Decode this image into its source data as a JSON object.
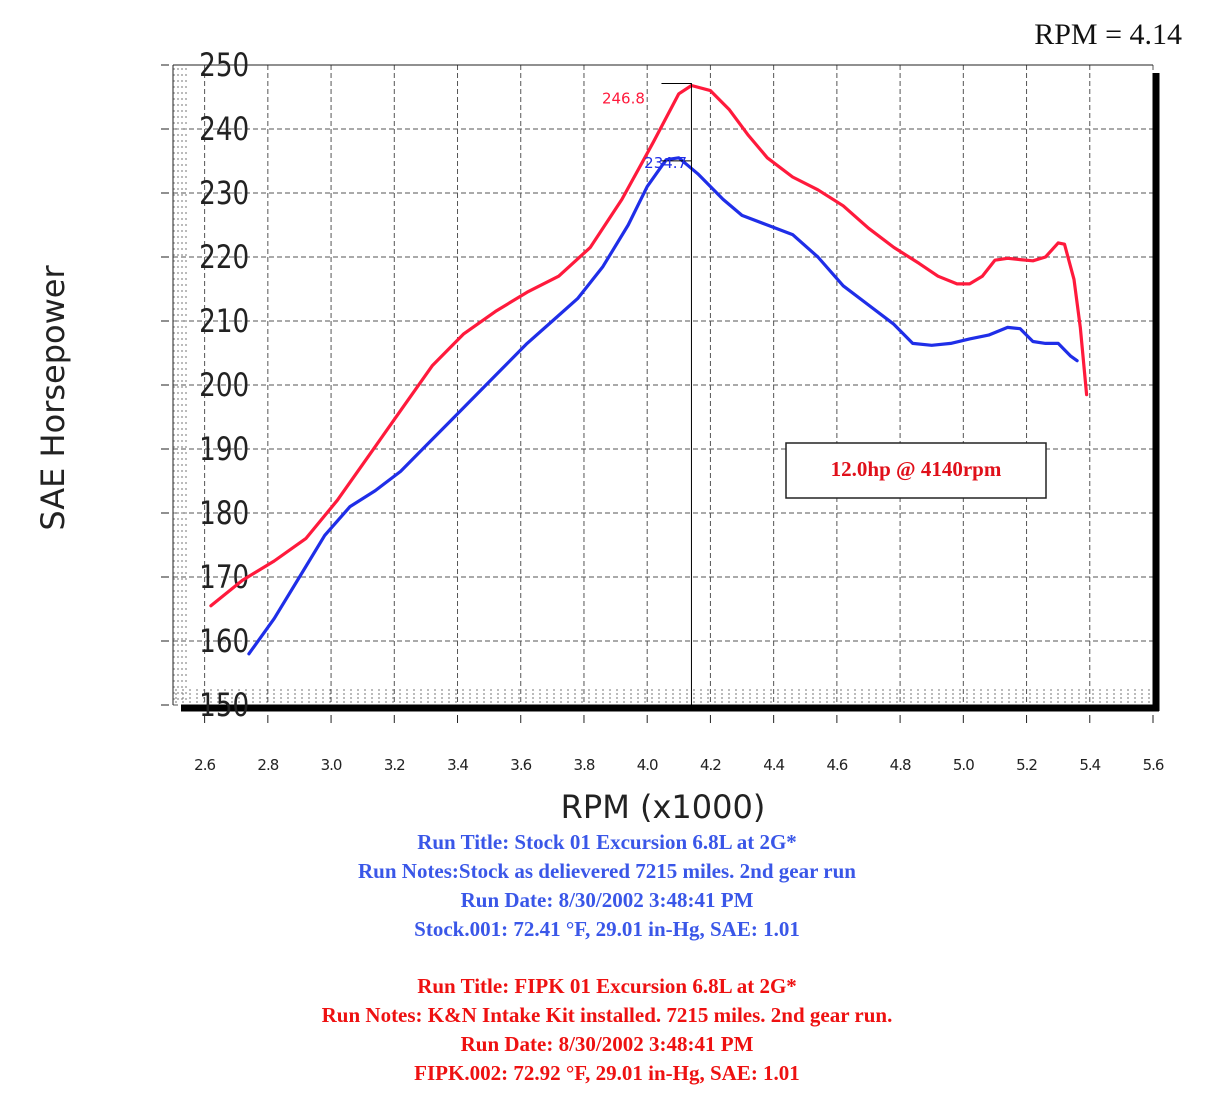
{
  "chart_data": {
    "type": "line",
    "title": "",
    "xlabel": "RPM (x1000)",
    "ylabel": "SAE Horsepower",
    "xlim": [
      2.5,
      5.6
    ],
    "ylim": [
      150,
      250
    ],
    "x_ticks": [
      "2.6",
      "2.8",
      "3.0",
      "3.2",
      "3.4",
      "3.6",
      "3.8",
      "4.0",
      "4.2",
      "4.4",
      "4.6",
      "4.8",
      "5.0",
      "5.2",
      "5.4",
      "5.6"
    ],
    "y_ticks": [
      "150",
      "160",
      "170",
      "180",
      "190",
      "200",
      "210",
      "220",
      "230",
      "240",
      "250"
    ],
    "grid": true,
    "cursor_readout": "RPM = 4.14",
    "cursor_x": 4.14,
    "annotation": "12.0hp @ 4140rpm",
    "series": [
      {
        "color": "#ff1a3c",
        "peak_label": "246.8",
        "peak_x": 4.14,
        "peak_y": 246.8,
        "points": [
          [
            2.62,
            165.5
          ],
          [
            2.72,
            169.5
          ],
          [
            2.82,
            172.5
          ],
          [
            2.92,
            176
          ],
          [
            3.02,
            182
          ],
          [
            3.12,
            189
          ],
          [
            3.22,
            196
          ],
          [
            3.32,
            203
          ],
          [
            3.42,
            208
          ],
          [
            3.52,
            211.5
          ],
          [
            3.62,
            214.5
          ],
          [
            3.72,
            217
          ],
          [
            3.82,
            221.5
          ],
          [
            3.92,
            229
          ],
          [
            4.02,
            238
          ],
          [
            4.1,
            245.5
          ],
          [
            4.14,
            246.8
          ],
          [
            4.2,
            246
          ],
          [
            4.26,
            243
          ],
          [
            4.32,
            239
          ],
          [
            4.38,
            235.5
          ],
          [
            4.46,
            232.5
          ],
          [
            4.54,
            230.5
          ],
          [
            4.62,
            228
          ],
          [
            4.7,
            224.5
          ],
          [
            4.78,
            221.5
          ],
          [
            4.86,
            219
          ],
          [
            4.92,
            217
          ],
          [
            4.98,
            215.8
          ],
          [
            5.02,
            215.8
          ],
          [
            5.06,
            217
          ],
          [
            5.1,
            219.5
          ],
          [
            5.14,
            219.8
          ],
          [
            5.18,
            219.6
          ],
          [
            5.22,
            219.4
          ],
          [
            5.26,
            220
          ],
          [
            5.3,
            222.2
          ],
          [
            5.32,
            222
          ],
          [
            5.35,
            216.5
          ],
          [
            5.37,
            209
          ],
          [
            5.39,
            198.5
          ]
        ]
      },
      {
        "color": "#1f2ee8",
        "peak_label": "234.7",
        "peak_x": 4.09,
        "peak_y": 234.7,
        "points": [
          [
            2.74,
            158
          ],
          [
            2.82,
            163.5
          ],
          [
            2.9,
            170
          ],
          [
            2.98,
            176.5
          ],
          [
            3.06,
            181
          ],
          [
            3.14,
            183.5
          ],
          [
            3.22,
            186.5
          ],
          [
            3.3,
            190.5
          ],
          [
            3.38,
            194.5
          ],
          [
            3.46,
            198.5
          ],
          [
            3.54,
            202.5
          ],
          [
            3.62,
            206.5
          ],
          [
            3.7,
            210
          ],
          [
            3.78,
            213.5
          ],
          [
            3.86,
            218.5
          ],
          [
            3.94,
            225
          ],
          [
            4.0,
            231
          ],
          [
            4.06,
            235.2
          ],
          [
            4.1,
            235.5
          ],
          [
            4.16,
            233
          ],
          [
            4.24,
            229
          ],
          [
            4.3,
            226.5
          ],
          [
            4.38,
            225
          ],
          [
            4.46,
            223.5
          ],
          [
            4.54,
            220
          ],
          [
            4.62,
            215.5
          ],
          [
            4.7,
            212.5
          ],
          [
            4.78,
            209.5
          ],
          [
            4.84,
            206.5
          ],
          [
            4.9,
            206.2
          ],
          [
            4.96,
            206.5
          ],
          [
            5.02,
            207.2
          ],
          [
            5.08,
            207.8
          ],
          [
            5.14,
            209
          ],
          [
            5.18,
            208.8
          ],
          [
            5.22,
            206.8
          ],
          [
            5.26,
            206.5
          ],
          [
            5.3,
            206.5
          ],
          [
            5.34,
            204.5
          ],
          [
            5.36,
            203.8
          ]
        ]
      }
    ]
  },
  "runs": [
    {
      "color": "#3a57e8",
      "title": "Run Title: Stock 01 Excursion 6.8L at 2G*",
      "notes": "Run Notes:Stock as delievered 7215 miles. 2nd gear run",
      "date": "Run Date: 8/30/2002 3:48:41 PM",
      "conditions": "Stock.001: 72.41 °F, 29.01 in-Hg, SAE: 1.01"
    },
    {
      "color": "#ee1111",
      "title": "Run Title: FIPK 01 Excursion 6.8L at 2G*",
      "notes": "Run Notes: K&N Intake Kit installed. 7215 miles. 2nd gear run.",
      "date": "Run Date: 8/30/2002 3:48:41 PM",
      "conditions": "FIPK.002: 72.92 °F, 29.01 in-Hg, SAE: 1.01"
    }
  ]
}
